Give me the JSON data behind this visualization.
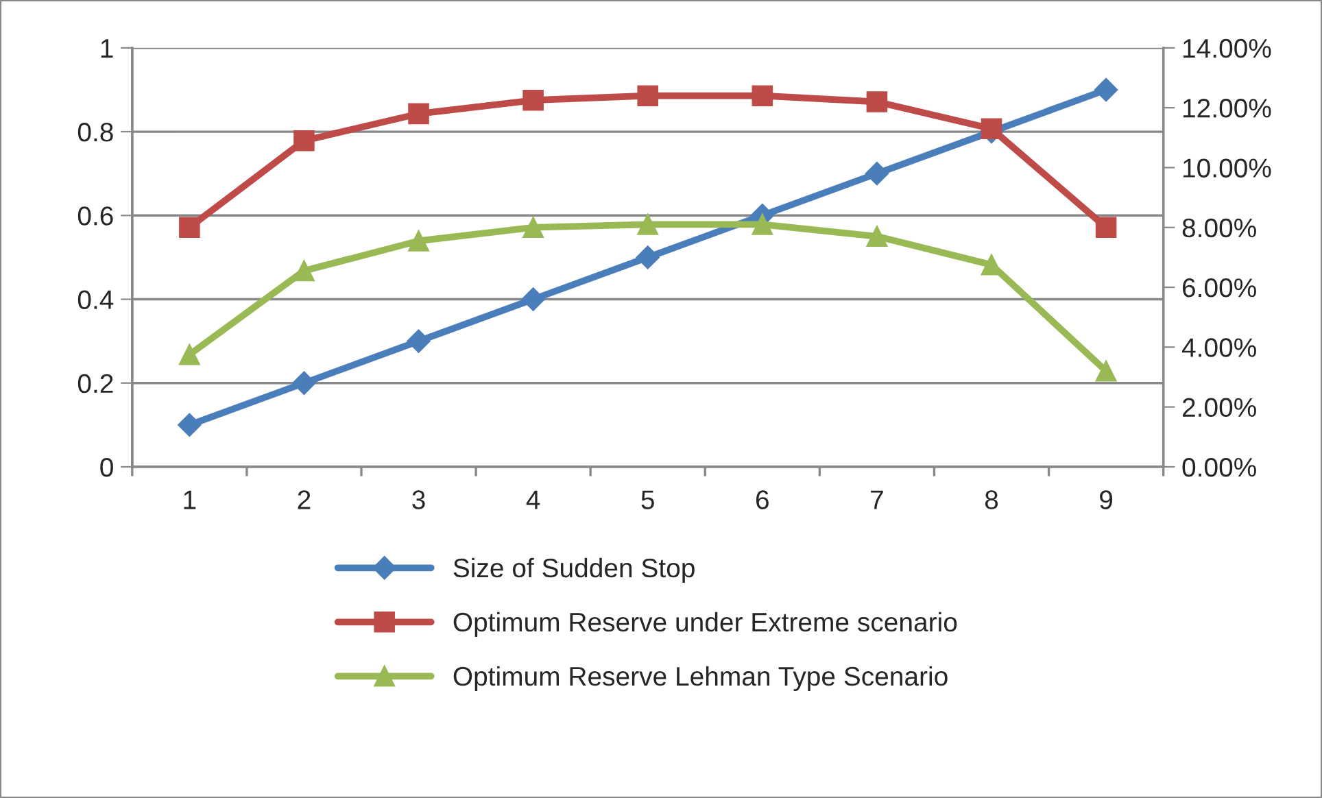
{
  "chart_data": {
    "type": "line",
    "categories": [
      "1",
      "2",
      "3",
      "4",
      "5",
      "6",
      "7",
      "8",
      "9"
    ],
    "series": [
      {
        "name": "Size of Sudden Stop",
        "color": "#4a7ebb",
        "marker": "diamond",
        "values": [
          0.1,
          0.2,
          0.3,
          0.4,
          0.5,
          0.6,
          0.7,
          0.8,
          0.9
        ]
      },
      {
        "name": "Optimum Reserve under Extreme scenario",
        "color": "#be4b48",
        "marker": "square",
        "axis": "y2",
        "values": [
          0.08,
          0.109,
          0.118,
          0.1225,
          0.124,
          0.124,
          0.122,
          0.113,
          0.08
        ]
      },
      {
        "name": "Optimum Reserve Lehman Type Scenario",
        "color": "#98b954",
        "marker": "triangle",
        "axis": "y2",
        "values": [
          0.0375,
          0.0655,
          0.0755,
          0.08,
          0.081,
          0.081,
          0.077,
          0.0675,
          0.032
        ]
      }
    ],
    "ylim": [
      0,
      1
    ],
    "yticks": [
      0,
      0.2,
      0.4,
      0.6,
      0.8,
      1
    ],
    "y2lim": [
      0,
      0.14
    ],
    "y2ticks": [
      {
        "value": 0,
        "label": "0.00%"
      },
      {
        "value": 0.02,
        "label": "2.00%"
      },
      {
        "value": 0.04,
        "label": "4.00%"
      },
      {
        "value": 0.06,
        "label": "6.00%"
      },
      {
        "value": 0.08,
        "label": "8.00%"
      },
      {
        "value": 0.1,
        "label": "10.00%"
      },
      {
        "value": 0.12,
        "label": "12.00%"
      },
      {
        "value": 0.14,
        "label": "14.00%"
      }
    ],
    "grid": "y",
    "legend": "bottom",
    "line_style": "solid"
  }
}
